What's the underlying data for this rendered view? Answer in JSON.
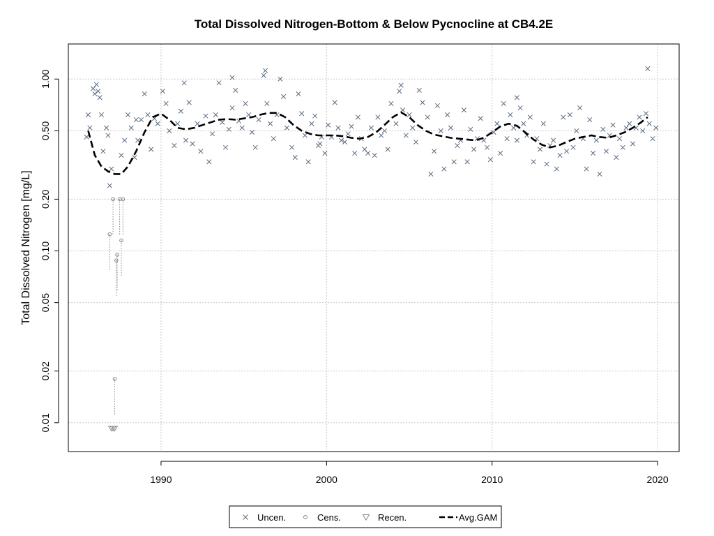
{
  "chart_data": {
    "type": "scatter",
    "title": "Total Dissolved Nitrogen-Bottom & Below Pycnocline at CB4.2E",
    "xlabel": "",
    "ylabel": "Total Dissolved Nitrogen [mg/L]",
    "y_scale": "log",
    "xlim": [
      1984.4,
      2021.3
    ],
    "ylim": [
      0.0068,
      1.6
    ],
    "x_ticks": [
      1990,
      2000,
      2010,
      2020
    ],
    "x_tick_labels": [
      "1990",
      "2000",
      "2010",
      "2020"
    ],
    "y_ticks": [
      0.01,
      0.02,
      0.05,
      0.1,
      0.2,
      0.5,
      1.0
    ],
    "y_tick_labels": [
      "0.01",
      "0.02",
      "0.05",
      "0.10",
      "0.20",
      "0.50",
      "1.00"
    ],
    "grid": true,
    "legend_position": "bottom-center",
    "colors": {
      "uncensored": "#5a6a80",
      "censored": "#888888",
      "gam": "#000000",
      "grid": "#c8c8c8"
    },
    "series": [
      {
        "name": "Uncen.",
        "marker": "x",
        "x": [
          1985.5,
          1985.6,
          1985.7,
          1985.9,
          1986.0,
          1986.1,
          1986.3,
          1986.4,
          1986.5,
          1986.7,
          1986.8,
          1986.9,
          1987.0,
          1987.6,
          1987.8,
          1988.0,
          1988.2,
          1988.4,
          1988.6,
          1988.8,
          1989.0,
          1989.2,
          1989.4,
          1989.6,
          1989.8,
          1990.1,
          1990.3,
          1990.5,
          1990.8,
          1991.0,
          1991.2,
          1991.4,
          1991.7,
          1991.9,
          1992.2,
          1992.4,
          1992.7,
          1992.9,
          1993.1,
          1993.3,
          1993.5,
          1993.7,
          1993.9,
          1994.1,
          1994.3,
          1994.5,
          1994.7,
          1994.9,
          1995.1,
          1995.3,
          1995.5,
          1995.7,
          1995.9,
          1996.2,
          1996.4,
          1996.6,
          1996.8,
          1997.0,
          1997.2,
          1997.4,
          1997.6,
          1997.9,
          1998.1,
          1998.3,
          1998.5,
          1998.7,
          1998.9,
          1999.1,
          1999.3,
          1999.5,
          1999.7,
          1999.9,
          2000.1,
          2000.3,
          2000.5,
          2000.7,
          2000.9,
          2001.1,
          2001.3,
          2001.5,
          2001.7,
          2001.9,
          2002.1,
          2002.3,
          2002.5,
          2002.7,
          2002.9,
          2003.1,
          2003.3,
          2003.5,
          2003.7,
          2003.9,
          2004.2,
          2004.4,
          2004.6,
          2004.8,
          2005.0,
          2005.2,
          2005.4,
          2005.6,
          2005.8,
          2006.1,
          2006.3,
          2006.5,
          2006.7,
          2006.9,
          2007.1,
          2007.3,
          2007.5,
          2007.7,
          2007.9,
          2008.1,
          2008.3,
          2008.5,
          2008.7,
          2008.9,
          2009.1,
          2009.3,
          2009.5,
          2009.7,
          2009.9,
          2010.1,
          2010.3,
          2010.5,
          2010.7,
          2010.9,
          2011.1,
          2011.3,
          2011.5,
          2011.7,
          2011.9,
          2012.1,
          2012.3,
          2012.5,
          2012.7,
          2012.9,
          2013.1,
          2013.3,
          2013.5,
          2013.7,
          2013.9,
          2014.1,
          2014.3,
          2014.5,
          2014.7,
          2014.9,
          2015.1,
          2015.3,
          2015.5,
          2015.7,
          2015.9,
          2016.1,
          2016.3,
          2016.5,
          2016.7,
          2016.9,
          2017.1,
          2017.3,
          2017.5,
          2017.7,
          2017.9,
          2018.1,
          2018.3,
          2018.5,
          2018.7,
          2018.9,
          2019.1,
          2019.3,
          2019.5,
          2019.7,
          2019.9,
          1986.2,
          1988.5,
          1991.5,
          1994.3,
          1996.3,
          1999.6,
          2004.5,
          2011.5,
          2019.4
        ],
        "y": [
          0.46,
          0.62,
          0.52,
          0.88,
          0.82,
          0.93,
          0.78,
          0.62,
          0.38,
          0.52,
          0.47,
          0.24,
          0.3,
          0.36,
          0.44,
          0.62,
          0.52,
          0.35,
          0.44,
          0.58,
          0.82,
          0.62,
          0.39,
          0.59,
          0.55,
          0.85,
          0.72,
          0.5,
          0.41,
          0.55,
          0.65,
          0.95,
          0.73,
          0.42,
          0.55,
          0.38,
          0.61,
          0.33,
          0.48,
          0.62,
          0.95,
          0.56,
          0.4,
          0.51,
          0.68,
          0.86,
          0.57,
          0.52,
          0.72,
          0.62,
          0.49,
          0.4,
          0.58,
          1.05,
          0.72,
          0.55,
          0.45,
          0.62,
          1.0,
          0.79,
          0.52,
          0.4,
          0.35,
          0.82,
          0.63,
          0.47,
          0.33,
          0.55,
          0.61,
          0.41,
          0.46,
          0.37,
          0.54,
          0.46,
          0.73,
          0.52,
          0.44,
          0.43,
          0.48,
          0.53,
          0.37,
          0.6,
          0.45,
          0.39,
          0.37,
          0.52,
          0.36,
          0.6,
          0.47,
          0.5,
          0.39,
          0.72,
          0.55,
          0.85,
          0.66,
          0.47,
          0.62,
          0.52,
          0.43,
          0.86,
          0.73,
          0.6,
          0.28,
          0.38,
          0.7,
          0.5,
          0.3,
          0.62,
          0.52,
          0.33,
          0.41,
          0.44,
          0.66,
          0.33,
          0.51,
          0.39,
          0.45,
          0.59,
          0.44,
          0.4,
          0.34,
          0.49,
          0.55,
          0.37,
          0.72,
          0.45,
          0.62,
          0.52,
          0.44,
          0.68,
          0.55,
          0.47,
          0.6,
          0.33,
          0.45,
          0.39,
          0.55,
          0.32,
          0.41,
          0.44,
          0.3,
          0.36,
          0.6,
          0.38,
          0.62,
          0.4,
          0.5,
          0.68,
          0.45,
          0.3,
          0.58,
          0.37,
          0.44,
          0.28,
          0.51,
          0.38,
          0.47,
          0.54,
          0.35,
          0.45,
          0.4,
          0.52,
          0.55,
          0.42,
          0.52,
          0.6,
          0.5,
          0.63,
          0.55,
          0.45,
          0.52,
          0.85,
          0.58,
          0.44,
          1.02,
          1.12,
          0.42,
          0.92,
          0.78,
          1.15
        ],
        "values_approximate": true
      },
      {
        "name": "Cens.",
        "marker": "o",
        "x": [
          1986.9,
          1987.1,
          1987.2,
          1987.3,
          1987.35,
          1987.5,
          1987.6,
          1987.7
        ],
        "y": [
          0.125,
          0.2,
          0.018,
          0.088,
          0.095,
          0.2,
          0.115,
          0.2
        ],
        "values_approximate": true
      },
      {
        "name": "Recen.",
        "marker": "triangle-down",
        "x": [
          1987.0,
          1987.1,
          1987.2
        ],
        "y": [
          0.0093,
          0.0093,
          0.0093
        ],
        "values_approximate": true
      },
      {
        "name": "Avg.GAM",
        "marker": "dashed-line",
        "x": [
          1985.6,
          1986.0,
          1986.4,
          1986.8,
          1987.2,
          1987.6,
          1988.0,
          1988.5,
          1989.0,
          1989.5,
          1990.0,
          1990.5,
          1991.0,
          1991.5,
          1992.0,
          1992.5,
          1993.0,
          1993.5,
          1994.0,
          1994.5,
          1995.0,
          1995.5,
          1996.0,
          1996.5,
          1997.0,
          1997.5,
          1998.0,
          1998.5,
          1999.0,
          1999.5,
          2000.0,
          2000.5,
          2001.0,
          2001.5,
          2002.0,
          2002.5,
          2003.0,
          2003.5,
          2004.0,
          2004.5,
          2005.0,
          2005.5,
          2006.0,
          2006.5,
          2007.0,
          2007.5,
          2008.0,
          2008.5,
          2009.0,
          2009.5,
          2010.0,
          2010.5,
          2011.0,
          2011.5,
          2012.0,
          2012.5,
          2013.0,
          2013.5,
          2014.0,
          2014.5,
          2015.0,
          2015.5,
          2016.0,
          2016.5,
          2017.0,
          2017.5,
          2018.0,
          2018.5,
          2019.0,
          2019.4
        ],
        "y": [
          0.5,
          0.36,
          0.31,
          0.29,
          0.28,
          0.28,
          0.31,
          0.38,
          0.49,
          0.6,
          0.63,
          0.58,
          0.52,
          0.51,
          0.52,
          0.54,
          0.56,
          0.58,
          0.585,
          0.58,
          0.59,
          0.6,
          0.62,
          0.635,
          0.635,
          0.6,
          0.54,
          0.5,
          0.48,
          0.47,
          0.47,
          0.47,
          0.465,
          0.455,
          0.45,
          0.46,
          0.49,
          0.54,
          0.6,
          0.64,
          0.6,
          0.54,
          0.5,
          0.475,
          0.465,
          0.455,
          0.45,
          0.445,
          0.44,
          0.455,
          0.49,
          0.53,
          0.55,
          0.535,
          0.49,
          0.445,
          0.415,
          0.4,
          0.41,
          0.43,
          0.45,
          0.46,
          0.47,
          0.46,
          0.455,
          0.47,
          0.49,
          0.52,
          0.56,
          0.6
        ],
        "values_approximate": true
      }
    ],
    "legend": {
      "entries": [
        "Uncen.",
        "Cens.",
        "Recen.",
        "Avg.GAM"
      ]
    }
  }
}
